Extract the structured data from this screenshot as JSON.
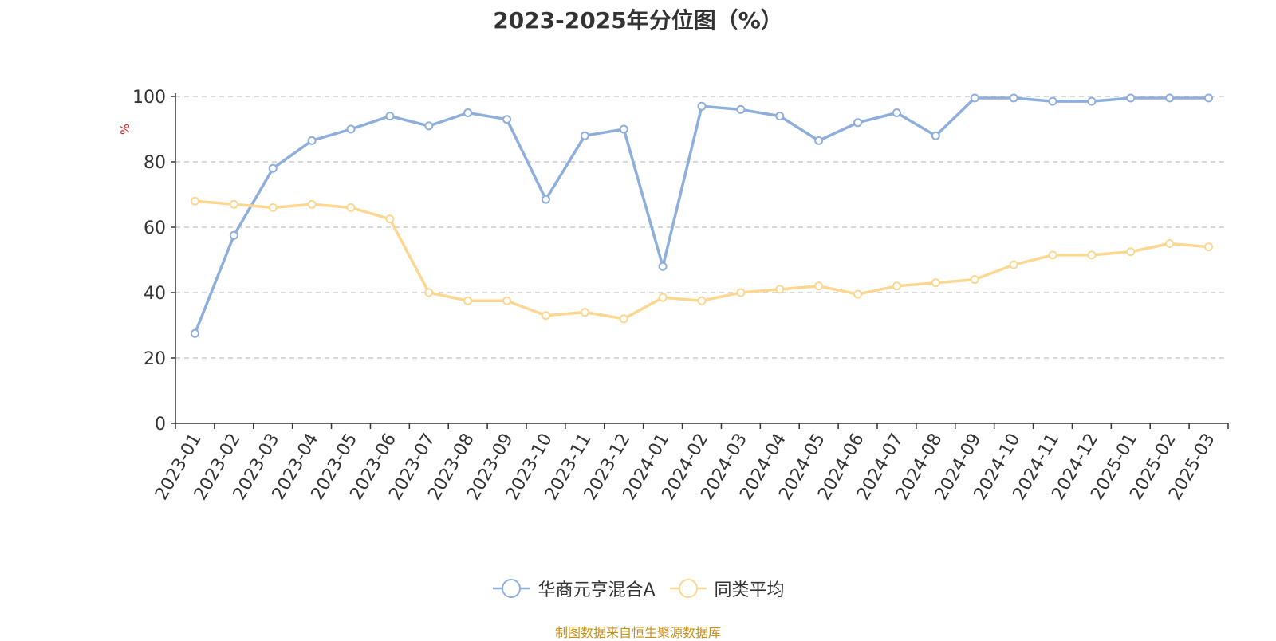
{
  "chart_data": {
    "type": "line",
    "title": "2023-2025年分位图（%）",
    "ylabel": "%",
    "ylim": [
      0,
      100
    ],
    "yticks": [
      0,
      20,
      40,
      60,
      80,
      100
    ],
    "grid": true,
    "legend_position": "bottom-center",
    "categories": [
      "2023-01",
      "2023-02",
      "2023-03",
      "2023-04",
      "2023-05",
      "2023-06",
      "2023-07",
      "2023-08",
      "2023-09",
      "2023-10",
      "2023-11",
      "2023-12",
      "2024-01",
      "2024-02",
      "2024-03",
      "2024-04",
      "2024-05",
      "2024-06",
      "2024-07",
      "2024-08",
      "2024-09",
      "2024-10",
      "2024-11",
      "2024-12",
      "2025-01",
      "2025-02",
      "2025-03"
    ],
    "series": [
      {
        "name": "华商元亨混合A",
        "color": "#8eaedb",
        "values": [
          27.5,
          57.5,
          78,
          86.5,
          90,
          94,
          91,
          95,
          93,
          68.5,
          88,
          90,
          48,
          97,
          96,
          94,
          86.5,
          92,
          95,
          88,
          99.5,
          99.5,
          98.5,
          98.5,
          99.5,
          99.5,
          99.5
        ]
      },
      {
        "name": "同类平均",
        "color": "#fbd791",
        "values": [
          68,
          67,
          66,
          67,
          66,
          62.5,
          40,
          37.5,
          37.5,
          33,
          34,
          32,
          38.5,
          37.5,
          40,
          41,
          42,
          39.5,
          42,
          43,
          44,
          48.5,
          51.5,
          51.5,
          52.5,
          55,
          54
        ]
      }
    ]
  },
  "source_note": "制图数据来自恒生聚源数据库"
}
